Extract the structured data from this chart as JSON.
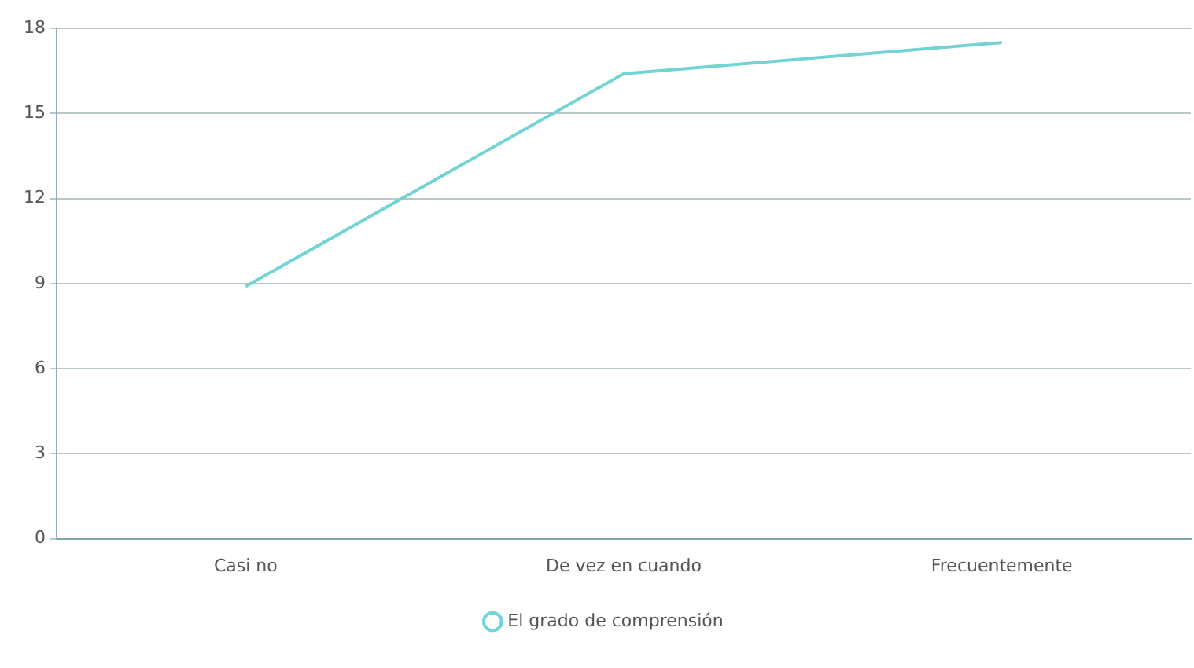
{
  "chart_data": {
    "type": "line",
    "categories": [
      "Casi no",
      "De vez en cuando",
      "Frecuentemente"
    ],
    "series": [
      {
        "name": "El grado de comprensión",
        "color": "#74d3d3",
        "values": [
          8.9,
          16.4,
          17.5
        ]
      }
    ],
    "ylim": [
      0,
      18
    ],
    "yticks": [
      0,
      3,
      6,
      9,
      12,
      15,
      18
    ],
    "grid": "y",
    "legend": "bottom",
    "marker": "none",
    "line_style": "solid"
  }
}
